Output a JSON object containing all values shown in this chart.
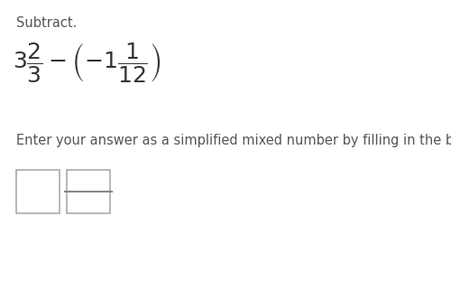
{
  "bg_color": "#ffffff",
  "title_text": "Subtract.",
  "title_fontsize": 10.5,
  "title_color": "#555555",
  "math_expr": "$3\\dfrac{2}{3} - \\left(-1\\dfrac{1}{12}\\right)$",
  "math_fontsize": 18,
  "math_color": "#333333",
  "instruction_text": "Enter your answer as a simplified mixed number by filling in the boxes.",
  "instruction_fontsize": 10.5,
  "instruction_color": "#555555",
  "box_edge_color": "#aaaaaa",
  "box_line_color": "#888888",
  "bg_color_box": "#ffffff"
}
